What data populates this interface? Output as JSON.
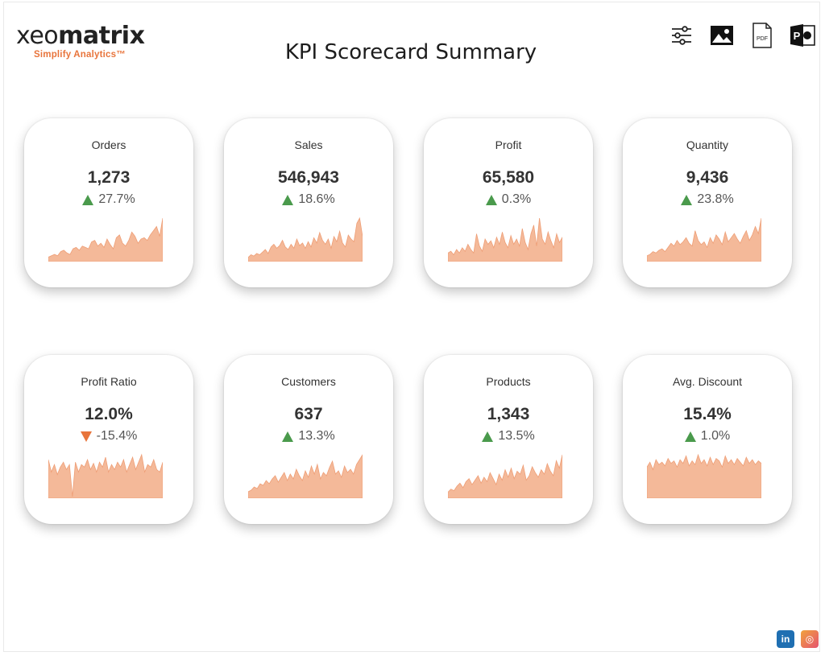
{
  "brand": {
    "name_part1": "xeo",
    "name_part2": "matrix",
    "tagline": "Simplify Analytics™"
  },
  "page": {
    "title": "KPI Scorecard Summary"
  },
  "toolbar": {
    "filters_icon": "sliders-icon",
    "image_icon": "image-icon",
    "pdf_icon": "pdf-icon",
    "pdf_label": "PDF",
    "ppt_icon": "powerpoint-icon",
    "ppt_label": "P"
  },
  "colors": {
    "accent": "#e8743b",
    "spark_fill": "#f4b999",
    "spark_stroke": "#ee9e76",
    "up": "#4a9a4c",
    "down": "#e8743b"
  },
  "kpis": [
    {
      "label": "Orders",
      "value": "1,273",
      "change": "27.7%",
      "direction": "up",
      "spark": [
        2,
        3,
        4,
        3,
        6,
        7,
        5,
        4,
        8,
        9,
        7,
        10,
        9,
        8,
        13,
        14,
        10,
        12,
        9,
        15,
        11,
        8,
        16,
        18,
        12,
        10,
        14,
        20,
        17,
        12,
        15,
        16,
        14,
        18,
        21,
        24,
        17,
        30
      ]
    },
    {
      "label": "Sales",
      "value": "546,943",
      "change": "18.6%",
      "direction": "up",
      "spark": [
        2,
        4,
        3,
        5,
        4,
        6,
        8,
        5,
        10,
        12,
        9,
        11,
        15,
        10,
        8,
        12,
        9,
        16,
        11,
        13,
        9,
        14,
        10,
        17,
        13,
        21,
        15,
        12,
        16,
        9,
        18,
        14,
        22,
        13,
        10,
        19,
        16,
        14,
        28,
        32,
        18
      ]
    },
    {
      "label": "Profit",
      "value": "65,580",
      "change": "0.3%",
      "direction": "up",
      "spark": [
        4,
        5,
        3,
        6,
        4,
        7,
        5,
        9,
        6,
        4,
        15,
        8,
        5,
        12,
        9,
        11,
        7,
        13,
        9,
        16,
        10,
        7,
        14,
        9,
        12,
        8,
        18,
        10,
        6,
        15,
        20,
        8,
        24,
        12,
        9,
        16,
        11,
        7,
        15,
        10,
        13
      ]
    },
    {
      "label": "Quantity",
      "value": "9,436",
      "change": "23.8%",
      "direction": "up",
      "spark": [
        3,
        4,
        6,
        5,
        7,
        8,
        6,
        9,
        12,
        10,
        14,
        11,
        13,
        16,
        12,
        10,
        21,
        14,
        11,
        13,
        9,
        16,
        12,
        18,
        15,
        11,
        20,
        13,
        16,
        19,
        15,
        12,
        17,
        21,
        14,
        18,
        24,
        19,
        30
      ]
    },
    {
      "label": "Profit Ratio",
      "value": "12.0%",
      "change": "-15.4%",
      "direction": "down",
      "spark": [
        22,
        12,
        18,
        10,
        16,
        20,
        14,
        18,
        -8,
        20,
        12,
        18,
        16,
        22,
        14,
        19,
        12,
        20,
        16,
        24,
        12,
        18,
        14,
        20,
        16,
        22,
        12,
        18,
        24,
        14,
        20,
        26,
        12,
        18,
        16,
        22,
        14,
        12,
        20
      ]
    },
    {
      "label": "Customers",
      "value": "637",
      "change": "13.3%",
      "direction": "up",
      "spark": [
        3,
        4,
        6,
        5,
        8,
        7,
        10,
        8,
        11,
        13,
        9,
        12,
        15,
        10,
        14,
        11,
        17,
        13,
        10,
        16,
        12,
        19,
        14,
        20,
        11,
        15,
        13,
        18,
        22,
        14,
        16,
        12,
        19,
        15,
        17,
        14,
        20,
        23,
        26
      ]
    },
    {
      "label": "Products",
      "value": "1,343",
      "change": "13.5%",
      "direction": "up",
      "spark": [
        3,
        5,
        4,
        7,
        9,
        6,
        10,
        12,
        8,
        11,
        14,
        9,
        13,
        10,
        16,
        12,
        8,
        15,
        11,
        18,
        13,
        19,
        12,
        17,
        15,
        21,
        11,
        14,
        20,
        16,
        13,
        18,
        15,
        22,
        17,
        14,
        24,
        19,
        28
      ]
    },
    {
      "label": "Avg. Discount",
      "value": "15.4%",
      "change": "1.0%",
      "direction": "up",
      "spark": [
        24,
        28,
        22,
        30,
        26,
        28,
        25,
        31,
        27,
        29,
        24,
        30,
        27,
        33,
        25,
        29,
        26,
        34,
        27,
        30,
        25,
        32,
        26,
        31,
        29,
        24,
        33,
        27,
        30,
        26,
        31,
        28,
        25,
        32,
        27,
        30,
        26,
        29,
        27
      ]
    }
  ],
  "social": {
    "linkedin_label": "in",
    "instagram_label": "◎"
  }
}
